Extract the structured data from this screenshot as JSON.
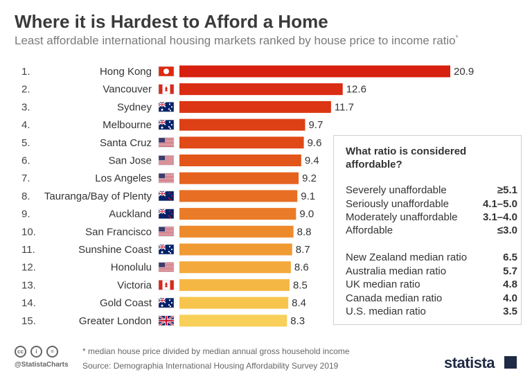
{
  "title": "Where it is Hardest to Afford a Home",
  "subtitle": "Least affordable international housing markets ranked by house price to income ratio",
  "subtitle_mark": "*",
  "chart_data": {
    "type": "bar",
    "orientation": "horizontal",
    "categories": [
      "Hong Kong",
      "Vancouver",
      "Sydney",
      "Melbourne",
      "Santa Cruz",
      "San Jose",
      "Los Angeles",
      "Tauranga/Bay of Plenty",
      "Auckland",
      "San Francisco",
      "Sunshine Coast",
      "Honolulu",
      "Victoria",
      "Gold Coast",
      "Greater London"
    ],
    "ranks": [
      "1.",
      "2.",
      "3.",
      "4.",
      "5.",
      "6.",
      "7.",
      "8.",
      "9.",
      "10.",
      "11.",
      "12.",
      "13.",
      "14.",
      "15."
    ],
    "values": [
      20.9,
      12.6,
      11.7,
      9.7,
      9.6,
      9.4,
      9.2,
      9.1,
      9.0,
      8.8,
      8.7,
      8.6,
      8.5,
      8.4,
      8.3
    ],
    "value_labels": [
      "20.9",
      "12.6",
      "11.7",
      "9.7",
      "9.6",
      "9.4",
      "9.2",
      "9.1",
      "9.0",
      "8.8",
      "8.7",
      "8.6",
      "8.5",
      "8.4",
      "8.3"
    ],
    "flags": [
      "hong-kong",
      "canada",
      "australia",
      "australia",
      "usa",
      "usa",
      "usa",
      "new-zealand",
      "new-zealand",
      "usa",
      "australia",
      "usa",
      "canada",
      "australia",
      "uk"
    ],
    "bar_colors": [
      "#d7200f",
      "#da2c12",
      "#dc3513",
      "#de4016",
      "#e04a18",
      "#e2551b",
      "#e5621e",
      "#e76e22",
      "#ea7b27",
      "#ed8a2c",
      "#f09a33",
      "#f3a93b",
      "#f5b743",
      "#f7c44d",
      "#f8cf58"
    ],
    "xlim": [
      0,
      21
    ],
    "grid": false,
    "legend": "none"
  },
  "legend_box": {
    "title": "What ratio is considered affordable?",
    "categories": [
      {
        "label": "Severely unaffordable",
        "value": "≥5.1"
      },
      {
        "label": "Seriously unaffordable",
        "value": "4.1–5.0"
      },
      {
        "label": "Moderately unaffordable",
        "value": "3.1–4.0"
      },
      {
        "label": "Affordable",
        "value": "≤3.0"
      }
    ],
    "medians": [
      {
        "label": "New Zealand median ratio",
        "value": "6.5"
      },
      {
        "label": "Australia median ratio",
        "value": "5.7"
      },
      {
        "label": "UK median ratio",
        "value": "4.8"
      },
      {
        "label": "Canada median ratio",
        "value": "4.0"
      },
      {
        "label": "U.S. median ratio",
        "value": "3.5"
      }
    ]
  },
  "footer": {
    "note": "* median house price divided by median annual gross household income",
    "source": "Source: Demographia International Housing Affordability Survey 2019",
    "handle": "@StatistaCharts",
    "logo": "statista"
  }
}
